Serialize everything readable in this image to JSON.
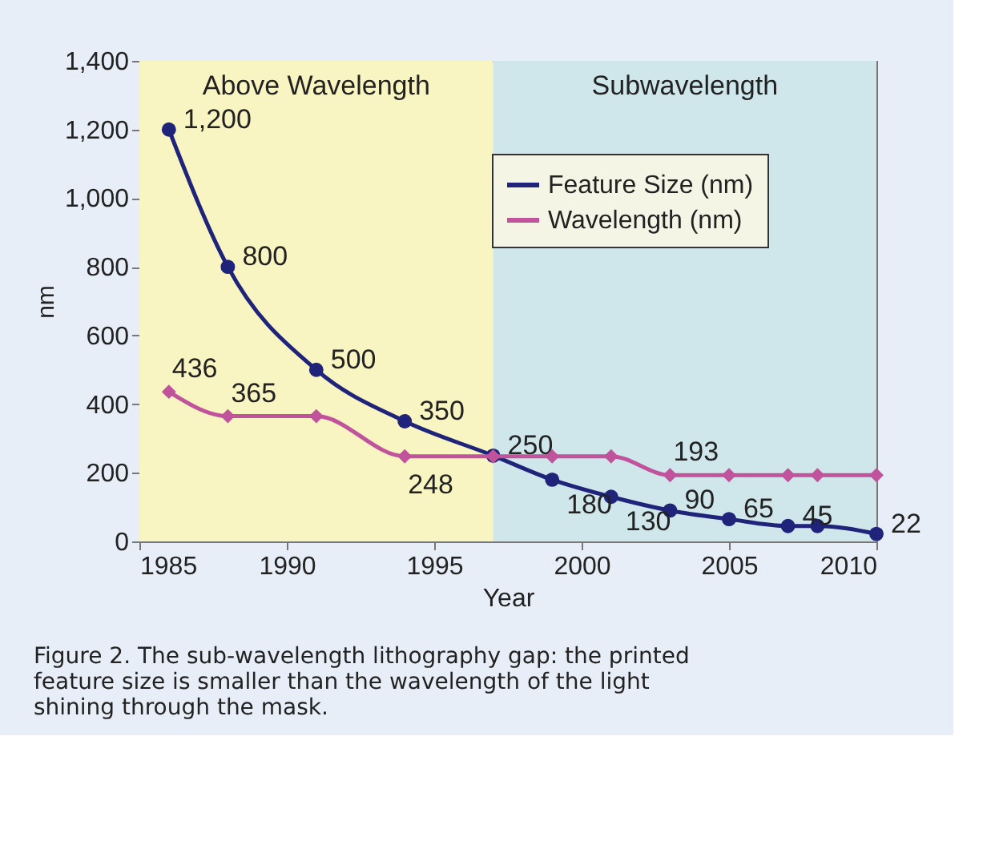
{
  "chart_data": {
    "type": "line",
    "xlabel": "Year",
    "ylabel": "nm",
    "xlim": [
      1985,
      2010
    ],
    "xticks": [
      1985,
      1990,
      1995,
      2000,
      2005,
      2010
    ],
    "ylim": [
      0,
      1400
    ],
    "yticks": [
      0,
      200,
      400,
      600,
      800,
      {
        "value": 1000,
        "label": "1,000"
      },
      {
        "value": 1200,
        "label": "1,200"
      },
      {
        "value": 1400,
        "label": "1,400"
      }
    ],
    "series": [
      {
        "name": "Feature Size (nm)",
        "color": "#1f237a",
        "marker": "circle",
        "x": [
          1986,
          1988,
          1991,
          1994,
          1997,
          1999,
          2001,
          2003,
          2005,
          2007,
          2008,
          2010
        ],
        "values": [
          1200,
          800,
          500,
          350,
          250,
          180,
          130,
          90,
          65,
          45,
          45,
          22
        ],
        "value_labels": [
          "1,200",
          "800",
          "500",
          "350",
          "250",
          "180",
          "130",
          "90",
          "65",
          "45",
          null,
          "22"
        ]
      },
      {
        "name": "Wavelength (nm)",
        "color": "#c0539b",
        "marker": "diamond",
        "x": [
          1986,
          1988,
          1991,
          1994,
          1997,
          1999,
          2001,
          2003,
          2005,
          2007,
          2008,
          2010
        ],
        "values": [
          436,
          365,
          365,
          248,
          248,
          248,
          248,
          193,
          193,
          193,
          193,
          193
        ],
        "value_labels": [
          "436",
          "365",
          null,
          "248",
          null,
          null,
          null,
          "193",
          null,
          null,
          null,
          null
        ]
      }
    ],
    "bands": [
      {
        "axis": "x",
        "from": 1985,
        "to": 1997,
        "label": "Above Wavelength",
        "color": "#f8f5c2"
      },
      {
        "axis": "x",
        "from": 1997,
        "to": 2010,
        "label": "Subwavelength",
        "color": "#cfe7ea"
      }
    ],
    "legend": "top right",
    "grid": false,
    "line_style": "solid",
    "annotations": [
      "Figure 2. The sub-wavelength lithography gap: the printed feature size is smaller than the wavelength of the light shining through the mask."
    ]
  }
}
